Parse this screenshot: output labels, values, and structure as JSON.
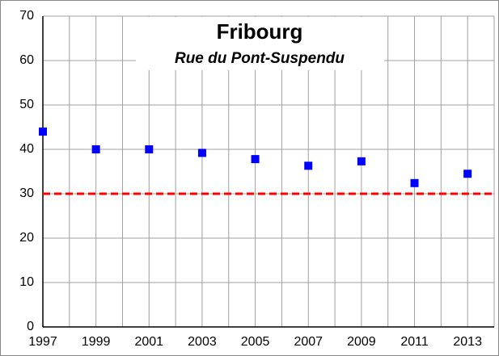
{
  "chart_data": {
    "type": "scatter",
    "title": "Fribourg",
    "subtitle": "Rue du Pont-Suspendu",
    "x": [
      1997,
      1999,
      2001,
      2003,
      2005,
      2007,
      2009,
      2011,
      2013
    ],
    "values": [
      44,
      40,
      40,
      39.2,
      37.8,
      36.3,
      37.3,
      32.4,
      34.5
    ],
    "color": "#0000ff",
    "threshold": 30,
    "threshold_color": "#ff0000",
    "xlim": [
      1997,
      2014
    ],
    "xticks": [
      1997,
      1999,
      2001,
      2003,
      2005,
      2007,
      2009,
      2011,
      2013
    ],
    "x_minor_ticks": [
      1998,
      2000,
      2002,
      2004,
      2006,
      2008,
      2010,
      2012,
      2014
    ],
    "ylim": [
      0,
      70
    ],
    "yticks": [
      0,
      10,
      20,
      30,
      40,
      50,
      60,
      70
    ],
    "grid": true
  }
}
